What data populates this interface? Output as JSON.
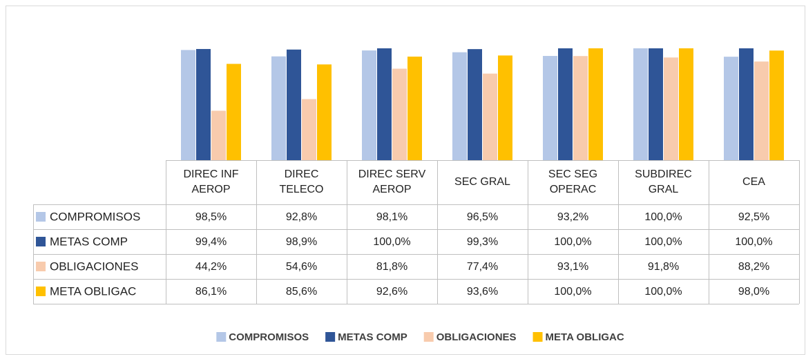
{
  "chart_data": {
    "type": "bar",
    "categories": [
      "DIREC INF AEROP",
      "DIREC TELECO",
      "DIREC SERV AEROP",
      "SEC GRAL",
      "SEC SEG OPERAC",
      "SUBDIREC GRAL",
      "CEA"
    ],
    "series": [
      {
        "name": "COMPROMISOS",
        "color": "#b4c7e7",
        "values": [
          98.5,
          92.8,
          98.1,
          96.5,
          93.2,
          100.0,
          92.5
        ],
        "value_labels": [
          "98,5%",
          "92,8%",
          "98,1%",
          "96,5%",
          "93,2%",
          "100,0%",
          "92,5%"
        ]
      },
      {
        "name": "METAS COMP",
        "color": "#2f5597",
        "values": [
          99.4,
          98.9,
          100.0,
          99.3,
          100.0,
          100.0,
          100.0
        ],
        "value_labels": [
          "99,4%",
          "98,9%",
          "100,0%",
          "99,3%",
          "100,0%",
          "100,0%",
          "100,0%"
        ]
      },
      {
        "name": "OBLIGACIONES",
        "color": "#f8cbad",
        "values": [
          44.2,
          54.6,
          81.8,
          77.4,
          93.1,
          91.8,
          88.2
        ],
        "value_labels": [
          "44,2%",
          "54,6%",
          "81,8%",
          "77,4%",
          "93,1%",
          "91,8%",
          "88,2%"
        ]
      },
      {
        "name": "META OBLIGAC",
        "color": "#ffc000",
        "values": [
          86.1,
          85.6,
          92.6,
          93.6,
          100.0,
          100.0,
          98.0
        ],
        "value_labels": [
          "86,1%",
          "85,6%",
          "92,6%",
          "93,6%",
          "100,0%",
          "100,0%",
          "98,0%"
        ]
      }
    ],
    "legend": "bottom"
  }
}
